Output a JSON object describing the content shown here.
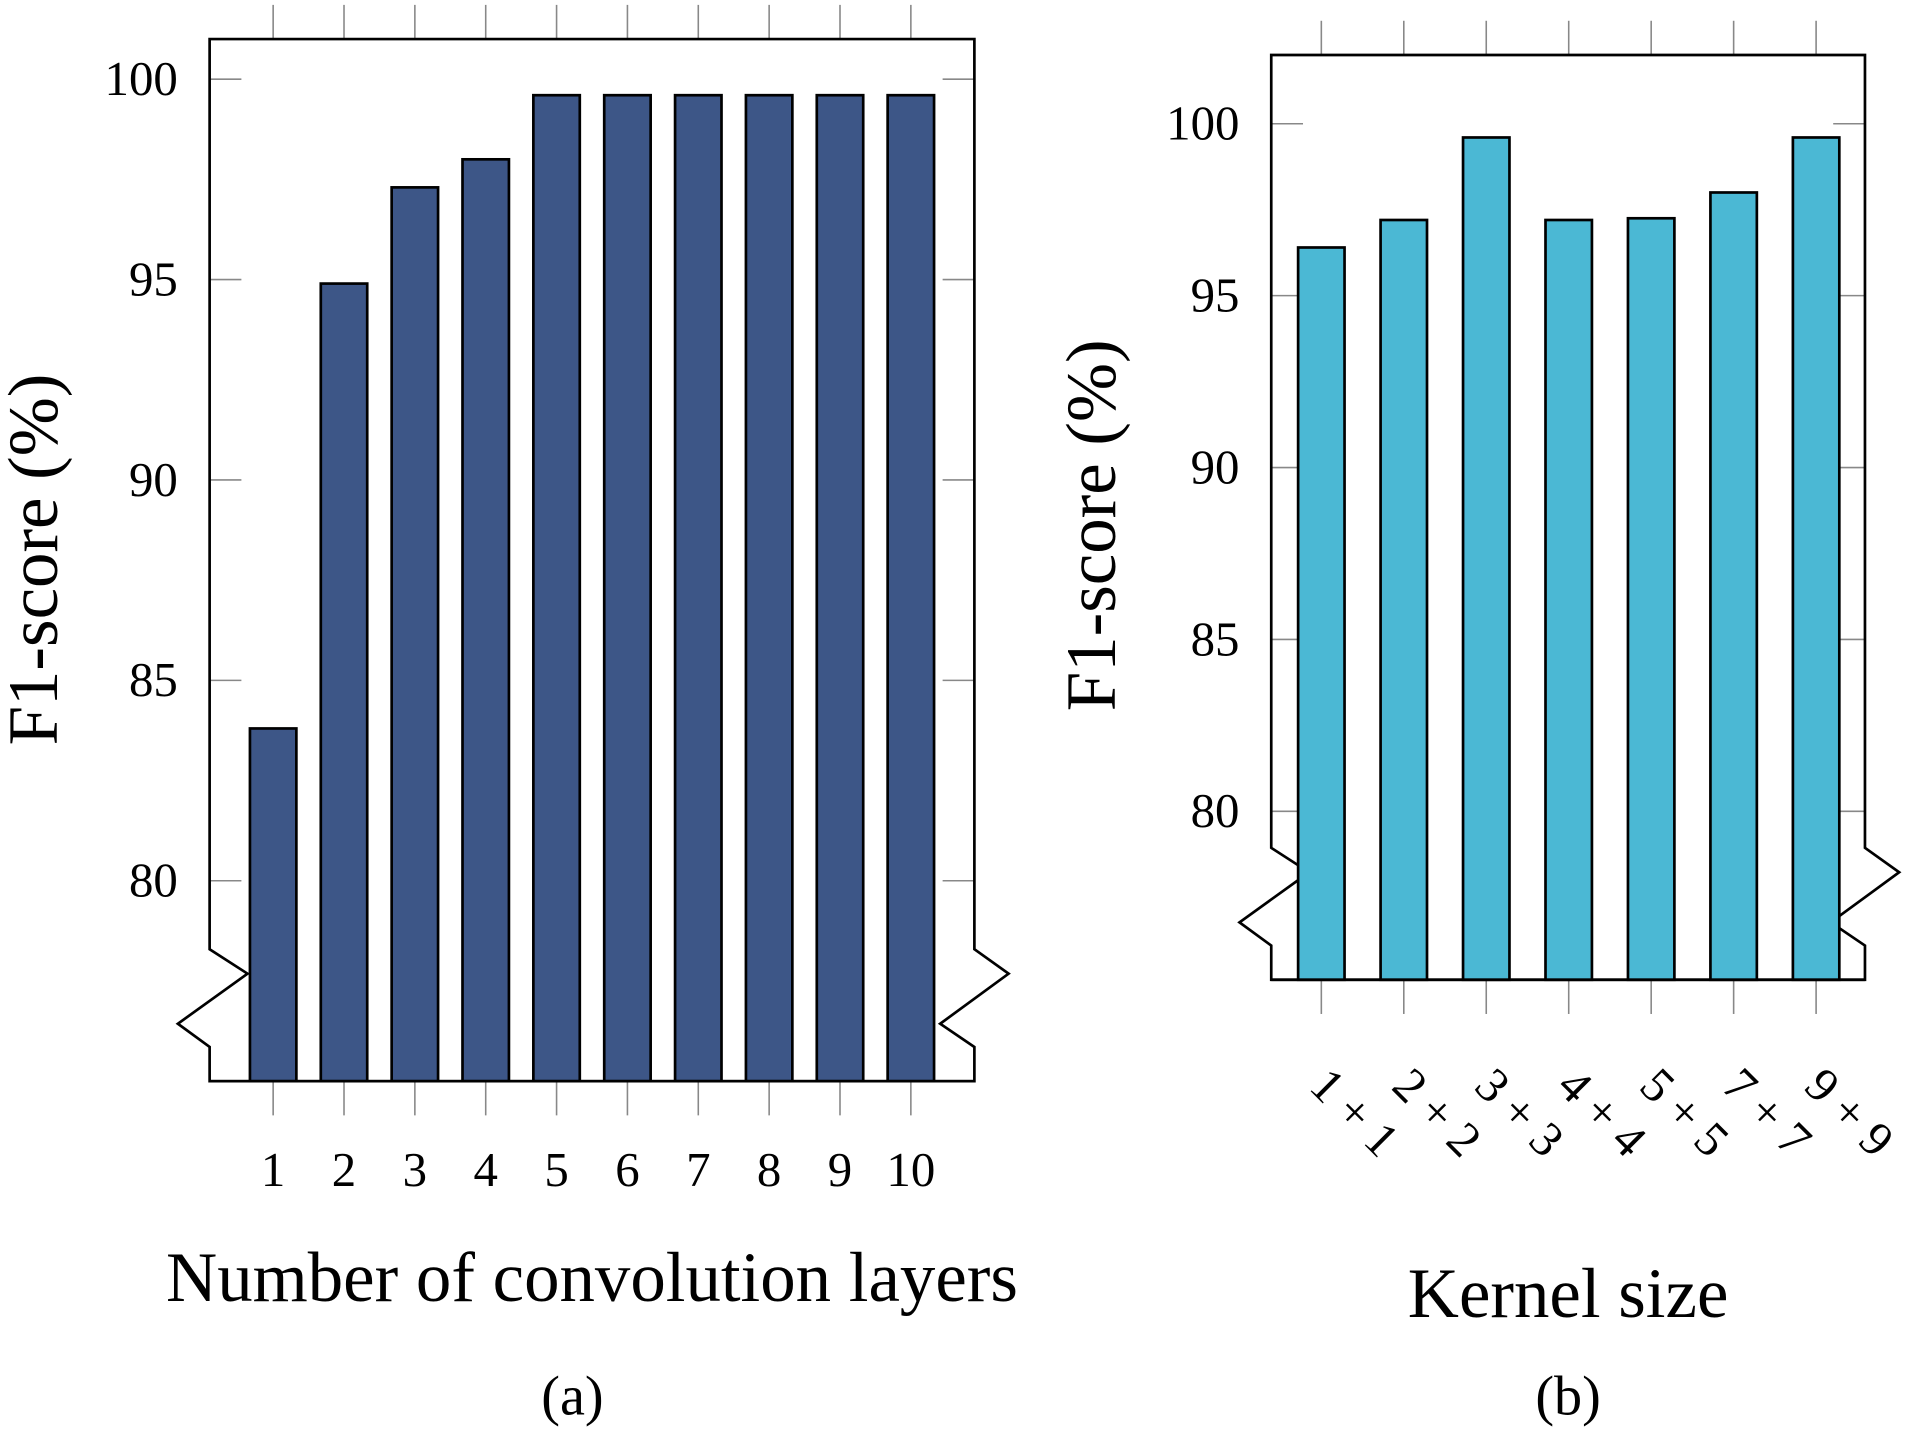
{
  "chart_data": [
    {
      "type": "bar",
      "xlabel": "Number of convolution layers",
      "ylabel": "F1-score (%)",
      "caption": "(a)",
      "categories": [
        "1",
        "2",
        "3",
        "4",
        "5",
        "6",
        "7",
        "8",
        "9",
        "10"
      ],
      "values": [
        83.8,
        94.9,
        97.3,
        98.0,
        99.6,
        99.6,
        99.6,
        99.6,
        99.6,
        99.6
      ],
      "yticks": [
        80,
        85,
        90,
        95,
        100
      ],
      "ylim": [
        75,
        101
      ],
      "axis_break": true,
      "grid": false,
      "color": "#3d5687"
    },
    {
      "type": "bar",
      "xlabel": "Kernel size",
      "ylabel": "F1-score (%)",
      "caption": "(b)",
      "categories": [
        "1 + 1",
        "2 + 2",
        "3 + 3",
        "4 + 4",
        "5 + 5",
        "7 + 7",
        "9 + 9"
      ],
      "values": [
        96.4,
        97.2,
        99.6,
        97.2,
        97.25,
        98.0,
        99.6
      ],
      "yticks": [
        80,
        85,
        90,
        95,
        100
      ],
      "ylim": [
        75.1,
        102
      ],
      "axis_break": true,
      "grid": false,
      "color": "#4bb8d4"
    }
  ]
}
